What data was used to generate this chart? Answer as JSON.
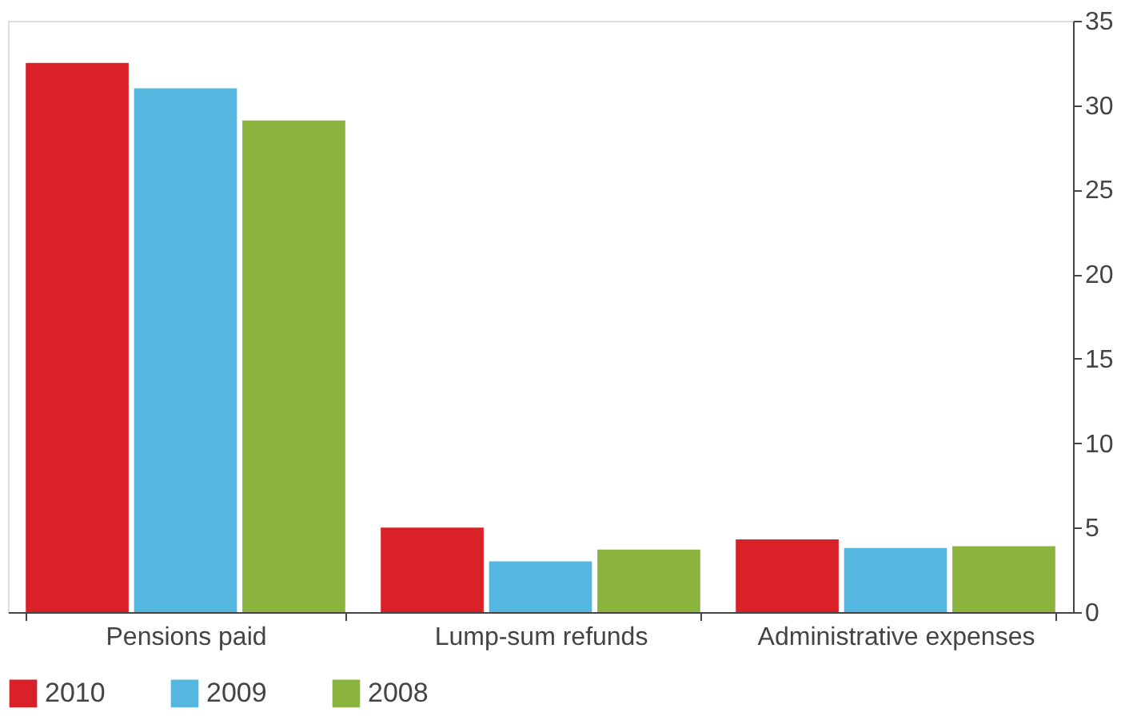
{
  "chart_data": {
    "type": "bar",
    "categories": [
      "Pensions paid",
      "Lump-sum refunds",
      "Administrative expenses"
    ],
    "series": [
      {
        "name": "2010",
        "color": "#da2128",
        "values": [
          32.5,
          5.0,
          4.3
        ]
      },
      {
        "name": "2009",
        "color": "#55b7e0",
        "values": [
          31.0,
          3.0,
          3.8
        ]
      },
      {
        "name": "2008",
        "color": "#8bb43f",
        "values": [
          29.1,
          3.7,
          3.9
        ]
      }
    ],
    "ylim": [
      0,
      35
    ],
    "yticks": [
      0,
      5,
      10,
      15,
      20,
      25,
      30,
      35
    ],
    "grid": false,
    "legend": "bottom left"
  }
}
